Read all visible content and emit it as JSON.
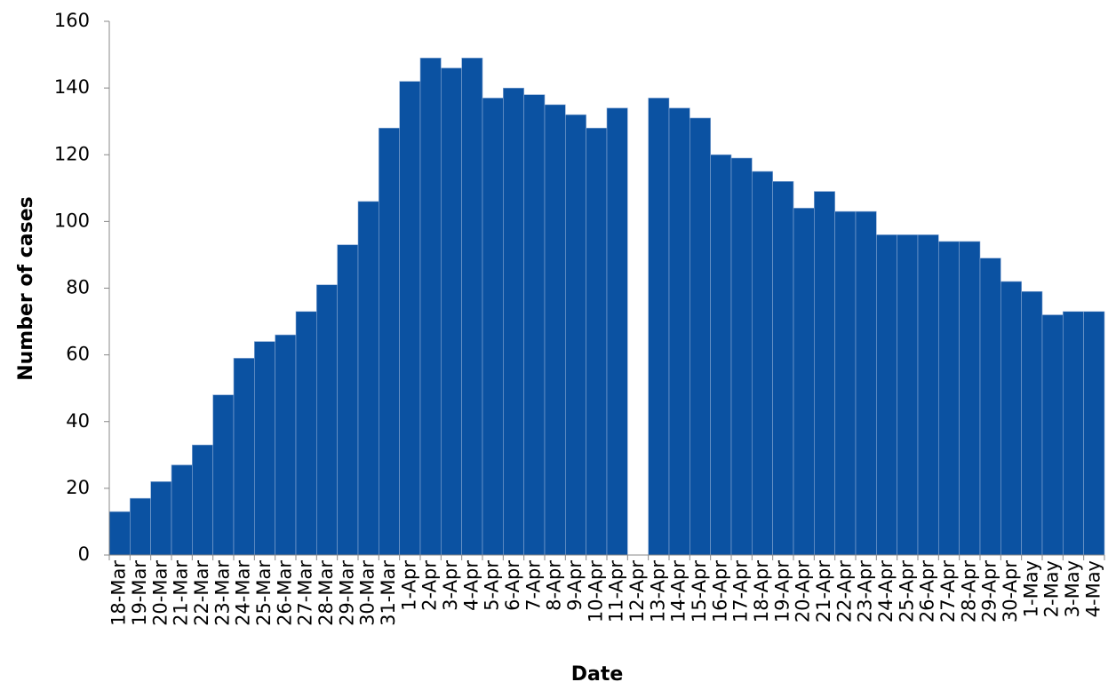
{
  "chart_data": {
    "type": "bar",
    "x_label": "Date",
    "y_label": "Number of cases",
    "categories": [
      "18-Mar",
      "19-Mar",
      "20-Mar",
      "21-Mar",
      "22-Mar",
      "23-Mar",
      "24-Mar",
      "25-Mar",
      "26-Mar",
      "27-Mar",
      "28-Mar",
      "29-Mar",
      "30-Mar",
      "31-Mar",
      "1-Apr",
      "2-Apr",
      "3-Apr",
      "4-Apr",
      "5-Apr",
      "6-Apr",
      "7-Apr",
      "8-Apr",
      "9-Apr",
      "10-Apr",
      "11-Apr",
      "12-Apr",
      "13-Apr",
      "14-Apr",
      "15-Apr",
      "16-Apr",
      "17-Apr",
      "18-Apr",
      "19-Apr",
      "20-Apr",
      "21-Apr",
      "22-Apr",
      "23-Apr",
      "24-Apr",
      "25-Apr",
      "26-Apr",
      "27-Apr",
      "28-Apr",
      "29-Apr",
      "30-Apr",
      "1-May",
      "2-May",
      "3-May",
      "4-May"
    ],
    "values": [
      13,
      17,
      22,
      27,
      33,
      48,
      59,
      64,
      66,
      73,
      81,
      93,
      106,
      128,
      142,
      149,
      146,
      149,
      137,
      140,
      138,
      135,
      132,
      128,
      134,
      null,
      137,
      134,
      131,
      120,
      119,
      115,
      112,
      104,
      109,
      103,
      103,
      96,
      96,
      96,
      94,
      94,
      89,
      82,
      79,
      72,
      73,
      73
    ],
    "color": "#0b52a2",
    "ylim": [
      0,
      160
    ],
    "yticks": [
      0,
      20,
      40,
      60,
      80,
      100,
      120,
      140,
      160
    ],
    "grid": false
  }
}
